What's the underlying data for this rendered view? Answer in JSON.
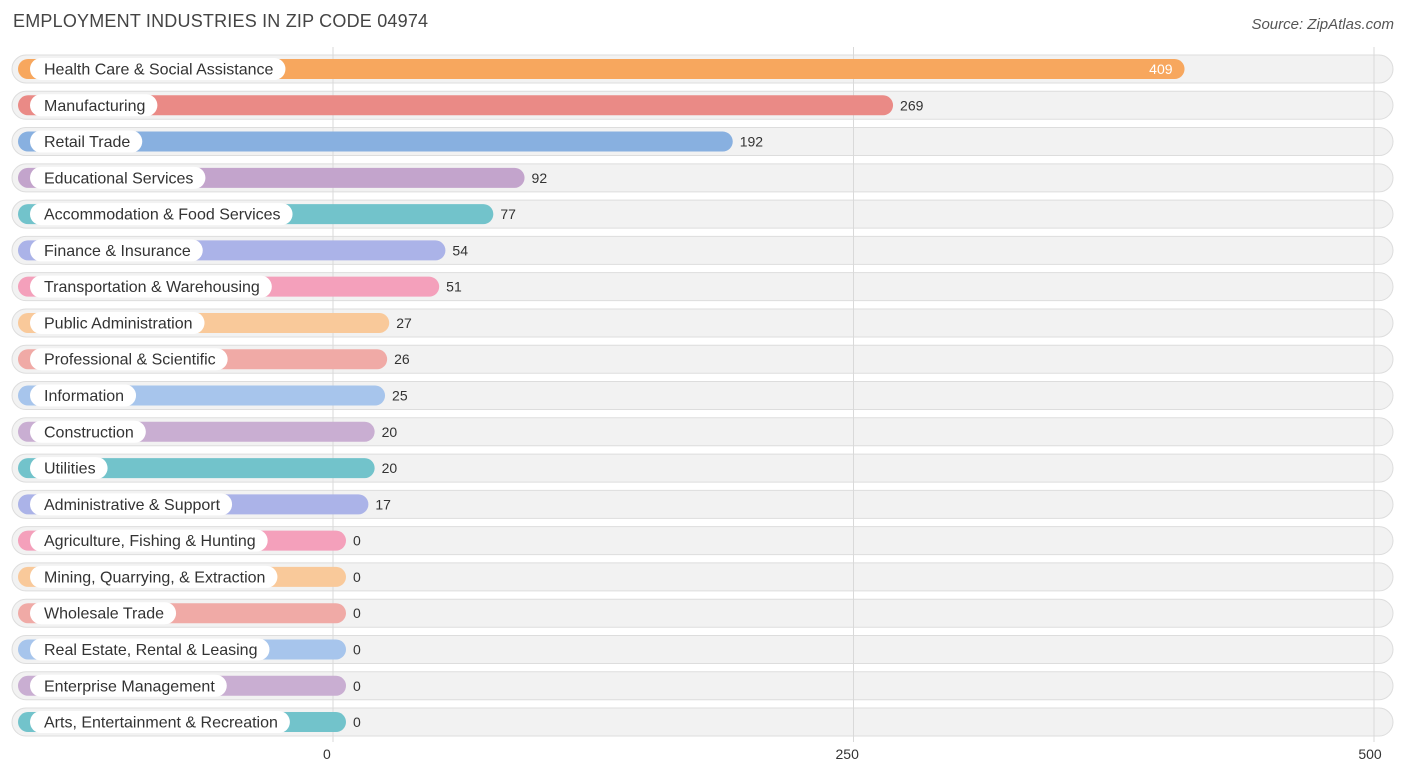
{
  "title": "EMPLOYMENT INDUSTRIES IN ZIP CODE 04974",
  "source": "Source: ZipAtlas.com",
  "chart_data": {
    "type": "bar",
    "orientation": "horizontal",
    "title": "EMPLOYMENT INDUSTRIES IN ZIP CODE 04974",
    "xlim": [
      0,
      500
    ],
    "ticks": [
      0,
      250,
      500
    ],
    "tick_labels": [
      "0",
      "250",
      "500"
    ],
    "grid": true,
    "categories": [
      "Health Care & Social Assistance",
      "Manufacturing",
      "Retail Trade",
      "Educational Services",
      "Accommodation & Food Services",
      "Finance & Insurance",
      "Transportation & Warehousing",
      "Public Administration",
      "Professional & Scientific",
      "Information",
      "Construction",
      "Utilities",
      "Administrative & Support",
      "Agriculture, Fishing & Hunting",
      "Mining, Quarrying, & Extraction",
      "Wholesale Trade",
      "Real Estate, Rental & Leasing",
      "Enterprise Management",
      "Arts, Entertainment & Recreation"
    ],
    "values": [
      409,
      269,
      192,
      92,
      77,
      54,
      51,
      27,
      26,
      25,
      20,
      20,
      17,
      0,
      0,
      0,
      0,
      0,
      0
    ],
    "value_labels": [
      "409",
      "269",
      "192",
      "92",
      "77",
      "54",
      "51",
      "27",
      "26",
      "25",
      "20",
      "20",
      "17",
      "0",
      "0",
      "0",
      "0",
      "0",
      "0"
    ],
    "colors": [
      "#f7a75e",
      "#ea8a86",
      "#88b0e0",
      "#c3a4cc",
      "#72c3cb",
      "#abb3e8",
      "#f4a0bb",
      "#f9c99a",
      "#f0aaa6",
      "#a7c5ec",
      "#c9aed2",
      "#72c3cb",
      "#abb3e8",
      "#f4a0bb",
      "#f9c99a",
      "#f0aaa6",
      "#a7c5ec",
      "#c9aed2",
      "#72c3cb"
    ]
  }
}
